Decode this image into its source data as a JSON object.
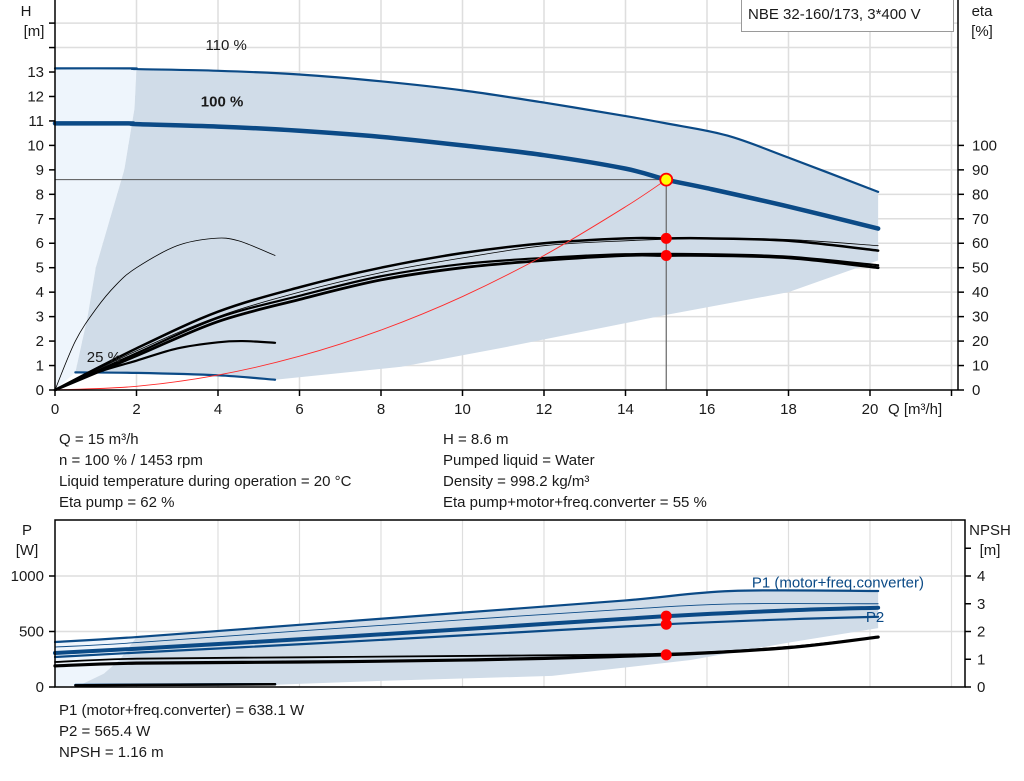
{
  "chart_data": [
    {
      "type": "line",
      "title": "NBE 32-160/173, 3*400 V",
      "xlabel": "Q [m³/h]",
      "ylabel": {
        "name": "H",
        "unit": "[m]"
      },
      "y2label": {
        "name": "eta",
        "unit": "[%]"
      },
      "xlim": [
        0,
        22
      ],
      "ylim": [
        0,
        15.9
      ],
      "y2lim": [
        0,
        159
      ],
      "grid": true,
      "x_ticks": [
        "0",
        "2",
        "4",
        "6",
        "8",
        "10",
        "12",
        "14",
        "16",
        "18",
        "20"
      ],
      "y_ticks": [
        "0",
        "1",
        "2",
        "3",
        "4",
        "5",
        "6",
        "7",
        "8",
        "9",
        "10",
        "11",
        "12",
        "13"
      ],
      "y2_ticks": [
        "0",
        "10",
        "20",
        "30",
        "40",
        "50",
        "60",
        "70",
        "80",
        "90",
        "100"
      ],
      "speed_labels": [
        {
          "text": "110 %",
          "q": 4.2,
          "h": 13.9
        },
        {
          "text": "100 %",
          "q": 4.1,
          "h": 11.6
        },
        {
          "text": "25 %",
          "q": 1.2,
          "h": 1.15
        }
      ],
      "colors": {
        "curve": "#0b4a86",
        "envelope": "#d0dce8",
        "envelope_light": "#eef5fc",
        "eta": "#000000",
        "system": "#ff2a2a",
        "marker": "#ff0000",
        "duty_point": "#ffff00"
      },
      "series": [
        {
          "key": "h110",
          "name": "110 %",
          "axis": "H",
          "points": [
            [
              0,
              13.15
            ],
            [
              1.9,
              13.15
            ],
            [
              2,
              13.12
            ],
            [
              4,
              13.05
            ],
            [
              6,
              12.9
            ],
            [
              8,
              12.62
            ],
            [
              10,
              12.25
            ],
            [
              12,
              11.75
            ],
            [
              14,
              11.2
            ],
            [
              15,
              10.9
            ],
            [
              16.5,
              10.4
            ],
            [
              18,
              9.5
            ],
            [
              20.2,
              8.1
            ]
          ]
        },
        {
          "key": "h100",
          "name": "100 %",
          "axis": "H",
          "points": [
            [
              0,
              10.9
            ],
            [
              1.8,
              10.9
            ],
            [
              2,
              10.87
            ],
            [
              4,
              10.77
            ],
            [
              6,
              10.6
            ],
            [
              8,
              10.35
            ],
            [
              10,
              10.0
            ],
            [
              12,
              9.6
            ],
            [
              14,
              9.05
            ],
            [
              15,
              8.6
            ],
            [
              16,
              8.25
            ],
            [
              18,
              7.5
            ],
            [
              20.2,
              6.6
            ]
          ]
        },
        {
          "key": "h25",
          "name": "25 %",
          "axis": "H",
          "points": [
            [
              0.5,
              0.72
            ],
            [
              2,
              0.7
            ],
            [
              4,
              0.6
            ],
            [
              5.4,
              0.42
            ]
          ]
        },
        {
          "key": "eta_pump_25",
          "axis": "eta",
          "points": [
            [
              0,
              0
            ],
            [
              0.5,
              20
            ],
            [
              1,
              33
            ],
            [
              1.5,
              43
            ],
            [
              2,
              50
            ],
            [
              3,
              59
            ],
            [
              3.9,
              62
            ],
            [
              4.5,
              61
            ],
            [
              5.4,
              55
            ]
          ]
        },
        {
          "key": "eta_pump",
          "axis": "eta",
          "points": [
            [
              0,
              0
            ],
            [
              2,
              17
            ],
            [
              4,
              32
            ],
            [
              6,
              42
            ],
            [
              8,
              50
            ],
            [
              10,
              56
            ],
            [
              12,
              60
            ],
            [
              14,
              62
            ],
            [
              15,
              62
            ],
            [
              16,
              62
            ],
            [
              18,
              61
            ],
            [
              20.2,
              57
            ]
          ]
        },
        {
          "key": "eta_pump_thin",
          "axis": "eta",
          "points": [
            [
              0,
              0
            ],
            [
              2,
              16
            ],
            [
              4,
              30
            ],
            [
              6,
              40
            ],
            [
              8,
              48
            ],
            [
              10,
              54
            ],
            [
              12,
              59
            ],
            [
              14,
              61
            ],
            [
              16,
              62
            ],
            [
              18,
              61.5
            ],
            [
              20.2,
              59
            ]
          ]
        },
        {
          "key": "eta_total",
          "axis": "eta",
          "points": [
            [
              0,
              0
            ],
            [
              2,
              14
            ],
            [
              4,
              28
            ],
            [
              6,
              37
            ],
            [
              8,
              45
            ],
            [
              10,
              50
            ],
            [
              12,
              53
            ],
            [
              14,
              55
            ],
            [
              15,
              55
            ],
            [
              16,
              55
            ],
            [
              18,
              54
            ],
            [
              20.2,
              50
            ]
          ]
        },
        {
          "key": "eta_total_b",
          "axis": "eta",
          "points": [
            [
              0,
              0
            ],
            [
              2,
              15
            ],
            [
              4,
              29.5
            ],
            [
              6,
              38.5
            ],
            [
              8,
              46.5
            ],
            [
              10,
              51.5
            ],
            [
              12,
              54
            ],
            [
              14,
              55.5
            ],
            [
              16,
              55.5
            ],
            [
              18,
              54.5
            ],
            [
              20.2,
              51
            ]
          ]
        },
        {
          "key": "eta_total_25",
          "axis": "eta",
          "points": [
            [
              0,
              0
            ],
            [
              1,
              7
            ],
            [
              2,
              12
            ],
            [
              3,
              17
            ],
            [
              4,
              19.5
            ],
            [
              4.6,
              20
            ],
            [
              5.4,
              19.3
            ]
          ]
        },
        {
          "key": "system",
          "axis": "H",
          "points": [
            [
              0,
              0
            ],
            [
              2,
              0.15
            ],
            [
              4,
              0.61
            ],
            [
              6,
              1.38
            ],
            [
              8,
              2.45
            ],
            [
              10,
              3.82
            ],
            [
              12,
              5.5
            ],
            [
              14,
              7.49
            ],
            [
              15,
              8.6
            ]
          ]
        }
      ],
      "envelope": [
        [
          2,
          13.12
        ],
        [
          4,
          13.05
        ],
        [
          6,
          12.9
        ],
        [
          8,
          12.62
        ],
        [
          10,
          12.25
        ],
        [
          12,
          11.75
        ],
        [
          14,
          11.2
        ],
        [
          15,
          10.9
        ],
        [
          16.5,
          10.4
        ],
        [
          18,
          9.5
        ],
        [
          20.2,
          8.1
        ],
        [
          20.2,
          5.3
        ],
        [
          18,
          4.0
        ],
        [
          15,
          3.07
        ],
        [
          10.9,
          1.7
        ],
        [
          8.5,
          0.95
        ],
        [
          5.4,
          0.42
        ],
        [
          4,
          0.6
        ],
        [
          2,
          0.7
        ],
        [
          0.5,
          0.72
        ],
        [
          0.8,
          3
        ],
        [
          1.0,
          5
        ],
        [
          1.35,
          7
        ],
        [
          1.7,
          9
        ],
        [
          1.95,
          11.5
        ],
        [
          2,
          13.12
        ]
      ],
      "envelope_light": [
        [
          0,
          13.15
        ],
        [
          2,
          13.15
        ],
        [
          1.95,
          11.5
        ],
        [
          1.7,
          9
        ],
        [
          1.35,
          7
        ],
        [
          1.0,
          5
        ],
        [
          0.8,
          3
        ],
        [
          0.5,
          0.72
        ],
        [
          0,
          0
        ]
      ],
      "duty_point": {
        "q": 15,
        "h": 8.6
      },
      "markers": [
        {
          "q": 15,
          "eta": 62
        },
        {
          "q": 15,
          "eta": 55
        }
      ]
    },
    {
      "type": "line",
      "ylabel": {
        "name": "P",
        "unit": "[W]"
      },
      "y2label": {
        "name": "NPSH",
        "unit": "[m]"
      },
      "xlim": [
        0,
        22
      ],
      "ylim": [
        0,
        1500
      ],
      "y2lim": [
        0,
        6
      ],
      "grid": true,
      "y_ticks": [
        "0",
        "500",
        "1000"
      ],
      "y2_ticks": [
        "0",
        "1",
        "2",
        "3",
        "4"
      ],
      "series_labels": [
        {
          "text": "P1 (motor+freq.converter)",
          "q": 17.1,
          "p": 940
        },
        {
          "text": "P2",
          "q": 19.9,
          "p": 630
        }
      ],
      "series": [
        {
          "key": "p1_110",
          "axis": "P",
          "points": [
            [
              0,
              405
            ],
            [
              2,
              450
            ],
            [
              6,
              560
            ],
            [
              10,
              670
            ],
            [
              14,
              780
            ],
            [
              16.6,
              865
            ],
            [
              20.2,
              865
            ]
          ]
        },
        {
          "key": "p2_110",
          "axis": "P",
          "points": [
            [
              0,
              360
            ],
            [
              2,
              400
            ],
            [
              6,
              505
            ],
            [
              10,
              605
            ],
            [
              14,
              700
            ],
            [
              16.6,
              748
            ],
            [
              20.2,
              750
            ]
          ]
        },
        {
          "key": "p1_100",
          "name": "P1 (motor+freq.converter)",
          "axis": "P",
          "points": [
            [
              0,
              306
            ],
            [
              2,
              345
            ],
            [
              6,
              430
            ],
            [
              10,
              520
            ],
            [
              15,
              638
            ],
            [
              18,
              690
            ],
            [
              20.2,
              714
            ]
          ]
        },
        {
          "key": "p2_100",
          "name": "P2",
          "axis": "P",
          "points": [
            [
              0,
              270
            ],
            [
              2,
              310
            ],
            [
              6,
              385
            ],
            [
              10,
              465
            ],
            [
              15,
              565
            ],
            [
              18,
              610
            ],
            [
              20.2,
              633
            ]
          ]
        },
        {
          "key": "p_25",
          "axis": "P",
          "points": [
            [
              0.5,
              18
            ],
            [
              5.4,
              25
            ]
          ]
        },
        {
          "key": "npsh_a",
          "axis": "NPSH",
          "points": [
            [
              0,
              0.9
            ],
            [
              2,
              1.02
            ],
            [
              6,
              1.07
            ],
            [
              10,
              1.12
            ],
            [
              15,
              1.2
            ],
            [
              18,
              1.45
            ],
            [
              20.2,
              1.8
            ]
          ]
        },
        {
          "key": "npsh_b",
          "axis": "NPSH",
          "points": [
            [
              0,
              0.76
            ],
            [
              2,
              0.86
            ],
            [
              6,
              0.9
            ],
            [
              10,
              0.97
            ],
            [
              15,
              1.16
            ],
            [
              18,
              1.42
            ],
            [
              20.2,
              1.8
            ]
          ]
        },
        {
          "key": "npsh_25",
          "axis": "NPSH",
          "points": [
            [
              0.5,
              0.06
            ],
            [
              5.4,
              0.1
            ]
          ]
        }
      ],
      "envelope": [
        [
          2,
          450
        ],
        [
          6,
          560
        ],
        [
          10,
          670
        ],
        [
          14,
          780
        ],
        [
          16.6,
          865
        ],
        [
          20.2,
          865
        ],
        [
          20.2,
          530
        ],
        [
          18,
          400
        ],
        [
          15.6,
          243
        ],
        [
          12.2,
          100
        ],
        [
          8,
          55
        ],
        [
          5.4,
          20
        ],
        [
          0.6,
          15
        ],
        [
          1.2,
          120
        ],
        [
          1.6,
          250
        ],
        [
          2,
          450
        ]
      ],
      "envelope_light": [
        [
          0,
          405
        ],
        [
          2,
          450
        ],
        [
          1.6,
          250
        ],
        [
          1.2,
          120
        ],
        [
          0.6,
          15
        ],
        [
          0,
          0
        ]
      ],
      "markers": [
        {
          "q": 15,
          "p": 638.1
        },
        {
          "q": 15,
          "p": 565.4
        },
        {
          "q": 15,
          "npsh": 1.16
        }
      ]
    }
  ],
  "title_box": "NBE 32-160/173, 3*400 V",
  "info": {
    "left": [
      "Q = 15 m³/h",
      "n = 100 % / 1453 rpm",
      "Liquid temperature during operation = 20 °C",
      "Eta pump = 62 %"
    ],
    "right": [
      "H = 8.6 m",
      "Pumped liquid = Water",
      "Density = 998.2 kg/m³",
      "Eta pump+motor+freq.converter = 55 %"
    ],
    "bottom": [
      "P1 (motor+freq.converter) = 638.1 W",
      "P2 = 565.4 W",
      "NPSH = 1.16 m"
    ]
  }
}
